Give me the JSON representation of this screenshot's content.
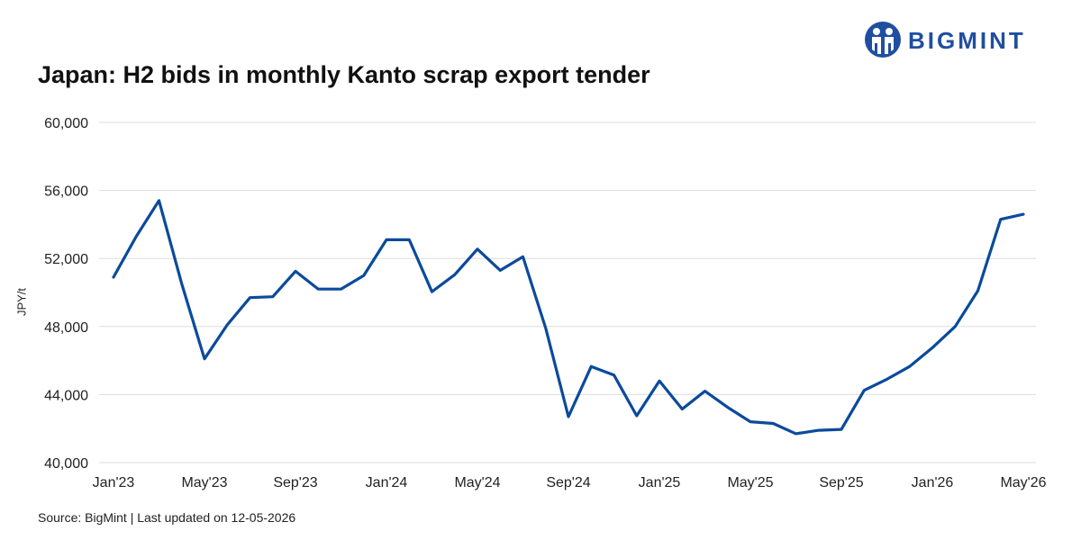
{
  "brand": {
    "name": "BIGMINT",
    "logo_icon": "bigmint-logo-icon",
    "color": "#1f4fa0"
  },
  "title": "Japan: H2 bids in monthly Kanto scrap export tender",
  "source": "Source: BigMint | Last updated on 12-05-2026",
  "chart_data": {
    "type": "line",
    "title": "Japan: H2 bids in monthly Kanto scrap export tender",
    "xlabel": "",
    "ylabel": "JPY/t",
    "ylim": [
      40000,
      60000
    ],
    "yticks": [
      40000,
      44000,
      48000,
      52000,
      56000,
      60000
    ],
    "ytick_labels": [
      "40,000",
      "44,000",
      "48,000",
      "52,000",
      "56,000",
      "60,000"
    ],
    "xtick_labels": [
      "Jan'23",
      "May'23",
      "Sep'23",
      "Jan'24",
      "May'24",
      "Sep'24",
      "Jan'25",
      "May'25",
      "Sep'25",
      "Jan'26",
      "May'26"
    ],
    "x": [
      "Jan'23",
      "Feb'23",
      "Mar'23",
      "Apr'23",
      "May'23",
      "Jun'23",
      "Jul'23",
      "Aug'23",
      "Sep'23",
      "Oct'23",
      "Nov'23",
      "Dec'23",
      "Jan'24",
      "Feb'24",
      "Mar'24",
      "Apr'24",
      "May'24",
      "Jun'24",
      "Jul'24",
      "Aug'24",
      "Sep'24",
      "Oct'24",
      "Nov'24",
      "Dec'24",
      "Jan'25",
      "Feb'25",
      "Mar'25",
      "Apr'25",
      "May'25",
      "Jun'25",
      "Jul'25",
      "Aug'25",
      "Sep'25",
      "Oct'25",
      "Nov'25",
      "Dec'25",
      "Jan'26",
      "Feb'26",
      "Mar'26",
      "Apr'26",
      "May'26"
    ],
    "series": [
      {
        "values": [
          50900,
          53300,
          55400,
          50500,
          46100,
          48100,
          49700,
          49750,
          51250,
          50200,
          50200,
          51000,
          53100,
          53100,
          50050,
          51050,
          52550,
          51300,
          52100,
          47900,
          42700,
          45650,
          45150,
          42750,
          44800,
          43150,
          44200,
          43250,
          42400,
          42300,
          41700,
          41900,
          41950,
          44250,
          44900,
          45650,
          46750,
          48000,
          50100,
          54300,
          54600
        ],
        "color": "#0b4a9c"
      }
    ],
    "grid": true,
    "grid_color": "#dddddd",
    "legend": "none"
  }
}
